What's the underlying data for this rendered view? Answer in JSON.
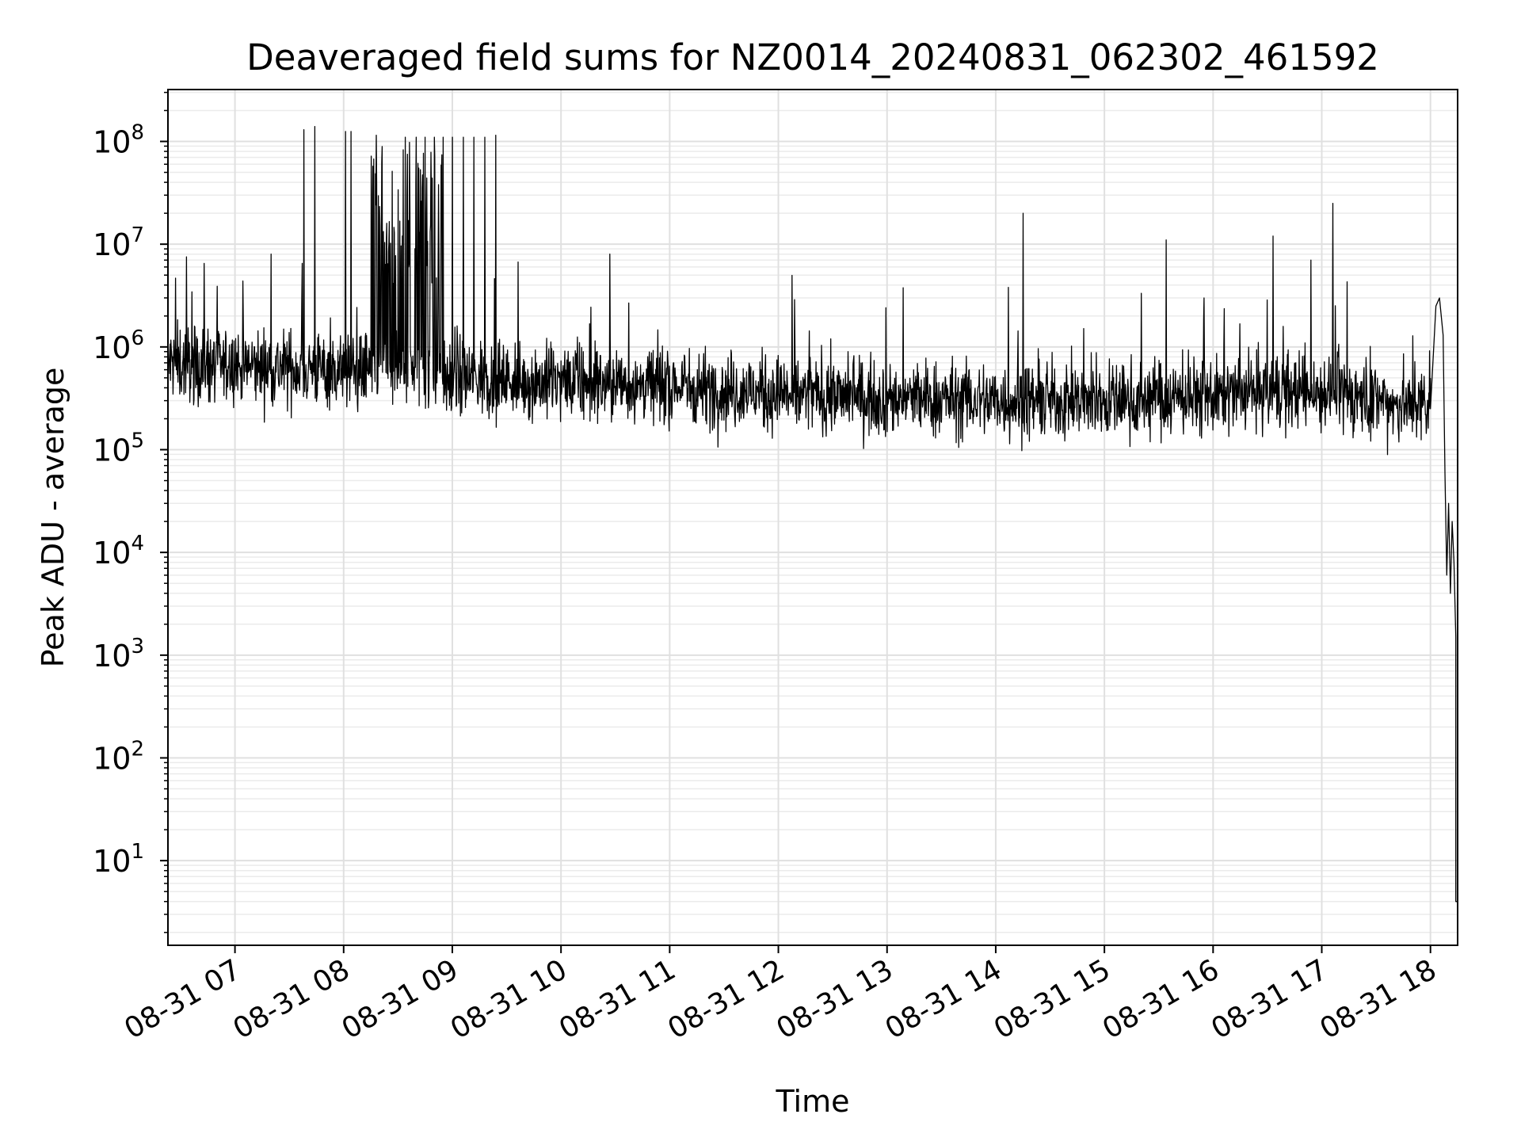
{
  "chart_data": {
    "type": "line",
    "title": "Deaveraged field sums for NZ0014_20240831_062302_461592",
    "xlabel": "Time",
    "ylabel": "Peak ADU - average",
    "x_scale": "time",
    "y_scale": "log",
    "xlim": [
      "2024-08-31 06:23",
      "2024-08-31 18:15"
    ],
    "ylim": [
      1.5,
      320000000.0
    ],
    "grid": true,
    "line_color": "#000000",
    "x_ticks": [
      {
        "label": "08-31 07",
        "time": "2024-08-31 07:00"
      },
      {
        "label": "08-31 08",
        "time": "2024-08-31 08:00"
      },
      {
        "label": "08-31 09",
        "time": "2024-08-31 09:00"
      },
      {
        "label": "08-31 10",
        "time": "2024-08-31 10:00"
      },
      {
        "label": "08-31 11",
        "time": "2024-08-31 11:00"
      },
      {
        "label": "08-31 12",
        "time": "2024-08-31 12:00"
      },
      {
        "label": "08-31 13",
        "time": "2024-08-31 13:00"
      },
      {
        "label": "08-31 14",
        "time": "2024-08-31 14:00"
      },
      {
        "label": "08-31 15",
        "time": "2024-08-31 15:00"
      },
      {
        "label": "08-31 16",
        "time": "2024-08-31 16:00"
      },
      {
        "label": "08-31 17",
        "time": "2024-08-31 17:00"
      },
      {
        "label": "08-31 18",
        "time": "2024-08-31 18:00"
      }
    ],
    "y_ticks": [
      {
        "base": "10",
        "exp": "1",
        "value": 10
      },
      {
        "base": "10",
        "exp": "2",
        "value": 100
      },
      {
        "base": "10",
        "exp": "3",
        "value": 1000
      },
      {
        "base": "10",
        "exp": "4",
        "value": 10000
      },
      {
        "base": "10",
        "exp": "5",
        "value": 100000
      },
      {
        "base": "10",
        "exp": "6",
        "value": 1000000
      },
      {
        "base": "10",
        "exp": "7",
        "value": 10000000
      },
      {
        "base": "10",
        "exp": "8",
        "value": 100000000
      }
    ],
    "series": [
      {
        "baseline": [
          [
            "2024-08-31 06:23",
            700000
          ],
          [
            "2024-08-31 07:00",
            650000
          ],
          [
            "2024-08-31 08:00",
            600000
          ],
          [
            "2024-08-31 09:00",
            500000
          ],
          [
            "2024-08-31 10:00",
            450000
          ],
          [
            "2024-08-31 11:00",
            420000
          ],
          [
            "2024-08-31 12:00",
            350000
          ],
          [
            "2024-08-31 13:00",
            320000
          ],
          [
            "2024-08-31 14:00",
            300000
          ],
          [
            "2024-08-31 15:00",
            300000
          ],
          [
            "2024-08-31 16:00",
            330000
          ],
          [
            "2024-08-31 17:00",
            380000
          ],
          [
            "2024-08-31 17:40",
            280000
          ],
          [
            "2024-08-31 18:00",
            250000
          ]
        ],
        "spikes": [
          [
            "2024-08-31 06:43",
            6500000
          ],
          [
            "2024-08-31 07:20",
            8000000
          ],
          [
            "2024-08-31 07:37",
            6500000
          ],
          [
            "2024-08-31 07:38",
            130000000
          ],
          [
            "2024-08-31 07:44",
            140000000
          ],
          [
            "2024-08-31 08:01",
            125000000
          ],
          [
            "2024-08-31 08:04",
            125000000
          ],
          [
            "2024-08-31 08:18",
            115000000
          ],
          [
            "2024-08-31 08:34",
            110000000
          ],
          [
            "2024-08-31 08:40",
            110000000
          ],
          [
            "2024-08-31 08:45",
            110000000
          ],
          [
            "2024-08-31 08:50",
            110000000
          ],
          [
            "2024-08-31 08:55",
            110000000
          ],
          [
            "2024-08-31 09:00",
            110000000
          ],
          [
            "2024-08-31 09:06",
            110000000
          ],
          [
            "2024-08-31 09:12",
            110000000
          ],
          [
            "2024-08-31 09:18",
            110000000
          ],
          [
            "2024-08-31 09:24",
            115000000
          ],
          [
            "2024-08-31 10:27",
            8000000
          ],
          [
            "2024-08-31 14:07",
            3800000
          ],
          [
            "2024-08-31 14:15",
            20000000
          ],
          [
            "2024-08-31 15:34",
            11000000
          ],
          [
            "2024-08-31 15:55",
            3000000
          ],
          [
            "2024-08-31 16:33",
            12000000
          ],
          [
            "2024-08-31 16:54",
            7000000
          ],
          [
            "2024-08-31 17:06",
            25000000
          ],
          [
            "2024-08-31 17:14",
            4300000
          ]
        ],
        "tail": [
          [
            "2024-08-31 18:00",
            250000
          ],
          [
            "2024-08-31 18:03",
            2500000
          ],
          [
            "2024-08-31 18:05",
            3000000
          ],
          [
            "2024-08-31 18:07",
            1300000
          ],
          [
            "2024-08-31 18:08",
            60000
          ],
          [
            "2024-08-31 18:09",
            6000
          ],
          [
            "2024-08-31 18:10",
            30000
          ],
          [
            "2024-08-31 18:11",
            4000
          ],
          [
            "2024-08-31 18:12",
            20000
          ],
          [
            "2024-08-31 18:13",
            8000
          ],
          [
            "2024-08-31 18:14",
            1500
          ],
          [
            "2024-08-31 18:14",
            4
          ],
          [
            "2024-08-31 18:15",
            4
          ]
        ]
      }
    ]
  }
}
